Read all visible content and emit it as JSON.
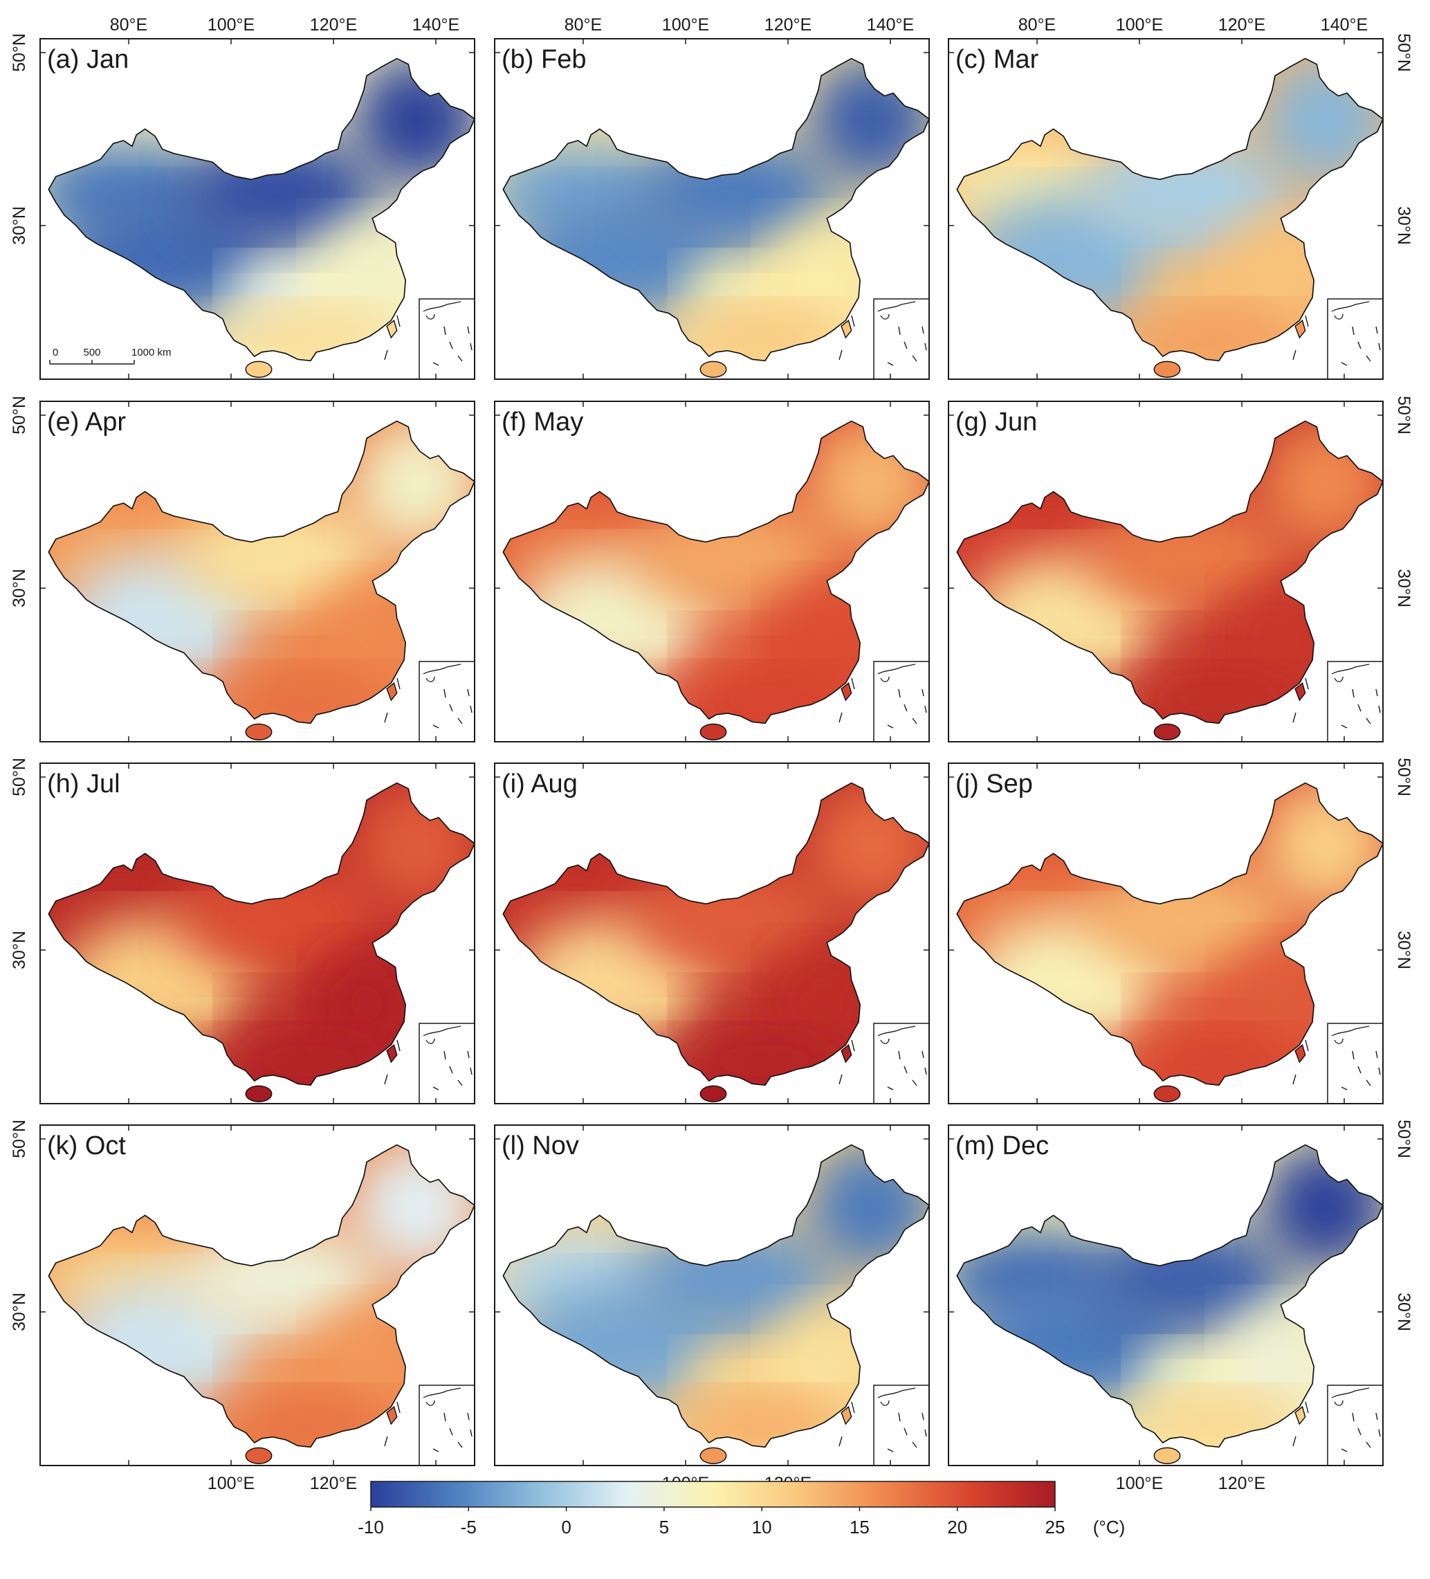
{
  "figure": {
    "panels": [
      {
        "label": "(a) Jan",
        "temps": {
          "north": -9,
          "west": -6,
          "plateau": -7,
          "basin": 4,
          "south": 10,
          "east": 6,
          "northeast": -10
        }
      },
      {
        "label": "(b) Feb",
        "temps": {
          "north": -6,
          "west": -3,
          "plateau": -5,
          "basin": 7,
          "south": 12,
          "east": 8,
          "northeast": -8
        }
      },
      {
        "label": "(c) Mar",
        "temps": {
          "north": 0,
          "west": 8,
          "plateau": -2,
          "basin": 12,
          "south": 15,
          "east": 12,
          "northeast": -2
        }
      },
      {
        "label": "(e) Apr",
        "temps": {
          "north": 9,
          "west": 14,
          "plateau": 2,
          "basin": 16,
          "south": 18,
          "east": 16,
          "northeast": 6
        }
      },
      {
        "label": "(f) May",
        "temps": {
          "north": 14,
          "west": 17,
          "plateau": 6,
          "basin": 19,
          "south": 21,
          "east": 20,
          "northeast": 13
        }
      },
      {
        "label": "(g) Jun",
        "temps": {
          "north": 17,
          "west": 21,
          "plateau": 9,
          "basin": 22,
          "south": 23,
          "east": 22,
          "northeast": 16
        }
      },
      {
        "label": "(h) Jul",
        "temps": {
          "north": 20,
          "west": 23,
          "plateau": 11,
          "basin": 23,
          "south": 24,
          "east": 24,
          "northeast": 19
        }
      },
      {
        "label": "(i) Aug",
        "temps": {
          "north": 19,
          "west": 22,
          "plateau": 10,
          "basin": 23,
          "south": 24,
          "east": 23,
          "northeast": 18
        }
      },
      {
        "label": "(j) Sep",
        "temps": {
          "north": 13,
          "west": 17,
          "plateau": 7,
          "basin": 19,
          "south": 21,
          "east": 19,
          "northeast": 11
        }
      },
      {
        "label": "(k) Oct",
        "temps": {
          "north": 5,
          "west": 11,
          "plateau": 2,
          "basin": 15,
          "south": 18,
          "east": 15,
          "northeast": 3
        }
      },
      {
        "label": "(l) Nov",
        "temps": {
          "north": -4,
          "west": 1,
          "plateau": -3,
          "basin": 10,
          "south": 14,
          "east": 9,
          "northeast": -6
        }
      },
      {
        "label": "(m) Dec",
        "temps": {
          "north": -8,
          "west": -7,
          "plateau": -6,
          "basin": 6,
          "south": 11,
          "east": 5,
          "northeast": -10
        }
      }
    ],
    "axes": {
      "top_ticks": [
        "80°E",
        "100°E",
        "120°E",
        "140°E"
      ],
      "bottom_ticks": [
        "100°E",
        "120°E"
      ],
      "left_ticks": [
        "50°N",
        "30°N"
      ],
      "right_ticks": [
        "50°N",
        "30°N"
      ]
    },
    "scale_bar": {
      "labels": [
        "0",
        "500",
        "1000 km"
      ]
    },
    "colorbar": {
      "ticks": [
        "-10",
        "-5",
        "0",
        "5",
        "10",
        "15",
        "20",
        "25"
      ],
      "min": -10,
      "max": 25,
      "unit": "(°C)",
      "colors": [
        "#2a3f9a",
        "#4f80c0",
        "#92c1de",
        "#e4f1f6",
        "#fbf2b0",
        "#f9c77c",
        "#ef874c",
        "#d9442f",
        "#a71b23"
      ]
    }
  }
}
